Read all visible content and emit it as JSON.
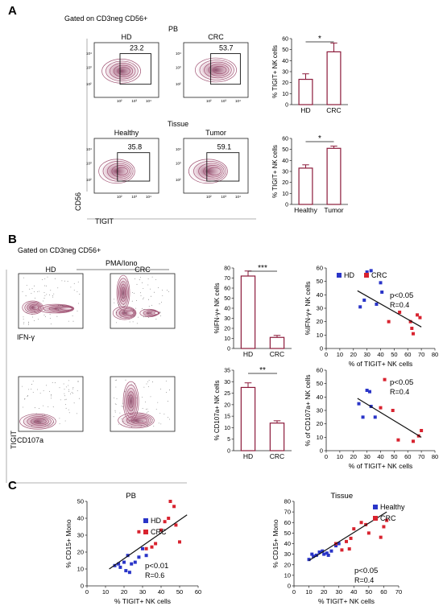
{
  "panel_labels": {
    "a": "A",
    "b": "B",
    "c": "C"
  },
  "colors": {
    "contour": "#a25676",
    "bar_outline": "#8b1a3a",
    "hd_blue": "#2a35c8",
    "crc_red": "#d8232f",
    "axis": "#222222"
  },
  "panel_a": {
    "header": "Gated on CD3neg CD56+",
    "pb_label": "PB",
    "tissue_label": "Tissue",
    "ylab": "CD56",
    "xlab": "TIGIT",
    "plots": [
      {
        "title": "HD",
        "value": "23.2"
      },
      {
        "title": "CRC",
        "value": "53.7"
      },
      {
        "title": "Healthy",
        "value": "35.8"
      },
      {
        "title": "Tumor",
        "value": "59.1"
      }
    ],
    "ticks": {
      "y4": "10⁴",
      "y3": "10³",
      "y2": "10²",
      "x2": "10²",
      "x3": "10³",
      "x4": "10⁴",
      "x5": "10⁵",
      "zero": "0"
    }
  },
  "panel_b": {
    "header": "Gated on CD3neg CD56+",
    "stim_label": "PMA/Iono",
    "ylab": "TIGIT",
    "plots": [
      {
        "title": "HD",
        "xlabel": "IFN-γ"
      },
      {
        "title": "CRC",
        "xlabel": ""
      },
      {
        "title": "",
        "xlabel": "CD107a"
      },
      {
        "title": "",
        "xlabel": ""
      }
    ]
  },
  "panel_c": {
    "left_title": "PB",
    "right_title": "Tissue"
  },
  "chart_data": [
    {
      "id": "a_bar_pb",
      "type": "bar",
      "categories": [
        "HD",
        "CRC"
      ],
      "values": [
        23,
        48
      ],
      "errors": [
        5,
        8
      ],
      "ylabel": "% TIGIT+ NK cells",
      "ylim": [
        0,
        60
      ],
      "yticks": [
        0,
        10,
        20,
        30,
        40,
        50,
        60
      ],
      "significance": "*"
    },
    {
      "id": "a_bar_tissue",
      "type": "bar",
      "categories": [
        "Healthy",
        "Tumor"
      ],
      "values": [
        33,
        51
      ],
      "errors": [
        3,
        2
      ],
      "ylabel": "% TIGIT+ NK cells",
      "ylim": [
        0,
        60
      ],
      "yticks": [
        0,
        10,
        20,
        30,
        40,
        50,
        60
      ],
      "significance": "*"
    },
    {
      "id": "b_bar_ifng",
      "type": "bar",
      "categories": [
        "HD",
        "CRC"
      ],
      "values": [
        72,
        11
      ],
      "errors": [
        5,
        2
      ],
      "ylabel": "%IFN-γ+ NK cells",
      "ylim": [
        0,
        80
      ],
      "yticks": [
        0,
        10,
        20,
        30,
        40,
        50,
        60,
        70,
        80
      ],
      "significance": "***"
    },
    {
      "id": "b_bar_cd107a",
      "type": "bar",
      "categories": [
        "HD",
        "CRC"
      ],
      "values": [
        27.5,
        12
      ],
      "errors": [
        2,
        1
      ],
      "ylabel": "% CD107a+ NK cells",
      "ylim": [
        0,
        35
      ],
      "yticks": [
        0,
        5,
        10,
        15,
        20,
        25,
        30,
        35
      ],
      "significance": "**"
    },
    {
      "id": "b_scatter_ifng",
      "type": "scatter",
      "xlabel": "% of TIGIT+ NK cells",
      "ylabel": "%IFN-γ+ NK cells",
      "xlim": [
        0,
        80
      ],
      "ylim": [
        0,
        60
      ],
      "xticks": [
        0,
        10,
        20,
        30,
        40,
        50,
        60,
        70,
        80
      ],
      "yticks": [
        0,
        10,
        20,
        30,
        40,
        50,
        60
      ],
      "legend": [
        "HD",
        "CRC"
      ],
      "stat_p": "p<0.05",
      "stat_r": "R=0.4",
      "series": [
        {
          "name": "HD",
          "x": [
            25,
            28,
            30,
            33,
            37,
            40,
            41
          ],
          "y": [
            31,
            36,
            57,
            58,
            33,
            49,
            42
          ]
        },
        {
          "name": "CRC",
          "x": [
            46,
            54,
            62,
            63,
            64,
            67,
            69
          ],
          "y": [
            20,
            27,
            20,
            15,
            11,
            25,
            23
          ]
        }
      ],
      "fit": {
        "x": [
          23,
          70
        ],
        "y": [
          43,
          16
        ]
      }
    },
    {
      "id": "b_scatter_cd107a",
      "type": "scatter",
      "xlabel": "% of TIGIT+ NK cells",
      "ylabel": "% of CD107a+ NK cells",
      "xlim": [
        0,
        80
      ],
      "ylim": [
        0,
        60
      ],
      "xticks": [
        0,
        10,
        20,
        30,
        40,
        50,
        60,
        70,
        80
      ],
      "yticks": [
        0,
        10,
        20,
        30,
        40,
        50,
        60
      ],
      "legend": [],
      "stat_p": "p<0.05",
      "stat_r": "R=0.4",
      "series": [
        {
          "name": "HD",
          "x": [
            24,
            27,
            30,
            32,
            33,
            36
          ],
          "y": [
            35,
            25,
            45,
            44,
            33,
            25
          ]
        },
        {
          "name": "CRC",
          "x": [
            40,
            43,
            49,
            53,
            64,
            68,
            70
          ],
          "y": [
            32,
            53,
            30,
            8,
            7,
            11,
            15
          ]
        }
      ],
      "fit": {
        "x": [
          23,
          70
        ],
        "y": [
          39,
          10
        ]
      }
    },
    {
      "id": "c_scatter_pb",
      "type": "scatter",
      "xlabel": "% TIGIT+ NK cells",
      "ylabel": "% CD15+ Mono",
      "xlim": [
        0,
        60
      ],
      "ylim": [
        0,
        50
      ],
      "xticks": [
        0,
        10,
        20,
        30,
        40,
        50,
        60
      ],
      "yticks": [
        0,
        10,
        20,
        30,
        40,
        50
      ],
      "legend": [
        "HD",
        "CRC"
      ],
      "stat_p": "p<0.01",
      "stat_r": "R=0.6",
      "series": [
        {
          "name": "HD",
          "x": [
            15,
            17,
            18,
            20,
            21,
            22,
            23,
            24,
            26,
            28,
            30,
            32
          ],
          "y": [
            12,
            13,
            11,
            14,
            9,
            18,
            8,
            13,
            14,
            17,
            22,
            18
          ]
        },
        {
          "name": "CRC",
          "x": [
            28,
            32,
            35,
            37,
            40,
            42,
            44,
            45,
            47,
            48,
            50
          ],
          "y": [
            32,
            22,
            23,
            25,
            33,
            38,
            40,
            50,
            47,
            36,
            26
          ]
        }
      ],
      "fit": {
        "x": [
          12,
          54
        ],
        "y": [
          10,
          42
        ]
      }
    },
    {
      "id": "c_scatter_tissue",
      "type": "scatter",
      "xlabel": "% TIGIT+ NK cells",
      "ylabel": "% CD15+ Mono",
      "xlim": [
        0,
        70
      ],
      "ylim": [
        0,
        80
      ],
      "xticks": [
        0,
        10,
        20,
        30,
        40,
        50,
        60,
        70
      ],
      "yticks": [
        0,
        10,
        20,
        30,
        40,
        50,
        60,
        70,
        80
      ],
      "legend": [
        "Healthy",
        "CRC"
      ],
      "stat_p": "p<0.05",
      "stat_r": "R=0.4",
      "series": [
        {
          "name": "Healthy",
          "x": [
            10,
            12,
            13,
            15,
            17,
            19,
            20,
            22,
            23,
            25,
            28,
            30
          ],
          "y": [
            25,
            30,
            28,
            29,
            32,
            33,
            30,
            31,
            29,
            33,
            38,
            40
          ]
        },
        {
          "name": "CRC",
          "x": [
            28,
            32,
            35,
            37,
            38,
            40,
            45,
            48,
            50,
            55,
            58,
            60,
            62
          ],
          "y": [
            40,
            34,
            42,
            35,
            45,
            54,
            60,
            58,
            50,
            64,
            46,
            56,
            62
          ]
        }
      ],
      "fit": {
        "x": [
          10,
          62
        ],
        "y": [
          24,
          70
        ]
      }
    }
  ]
}
